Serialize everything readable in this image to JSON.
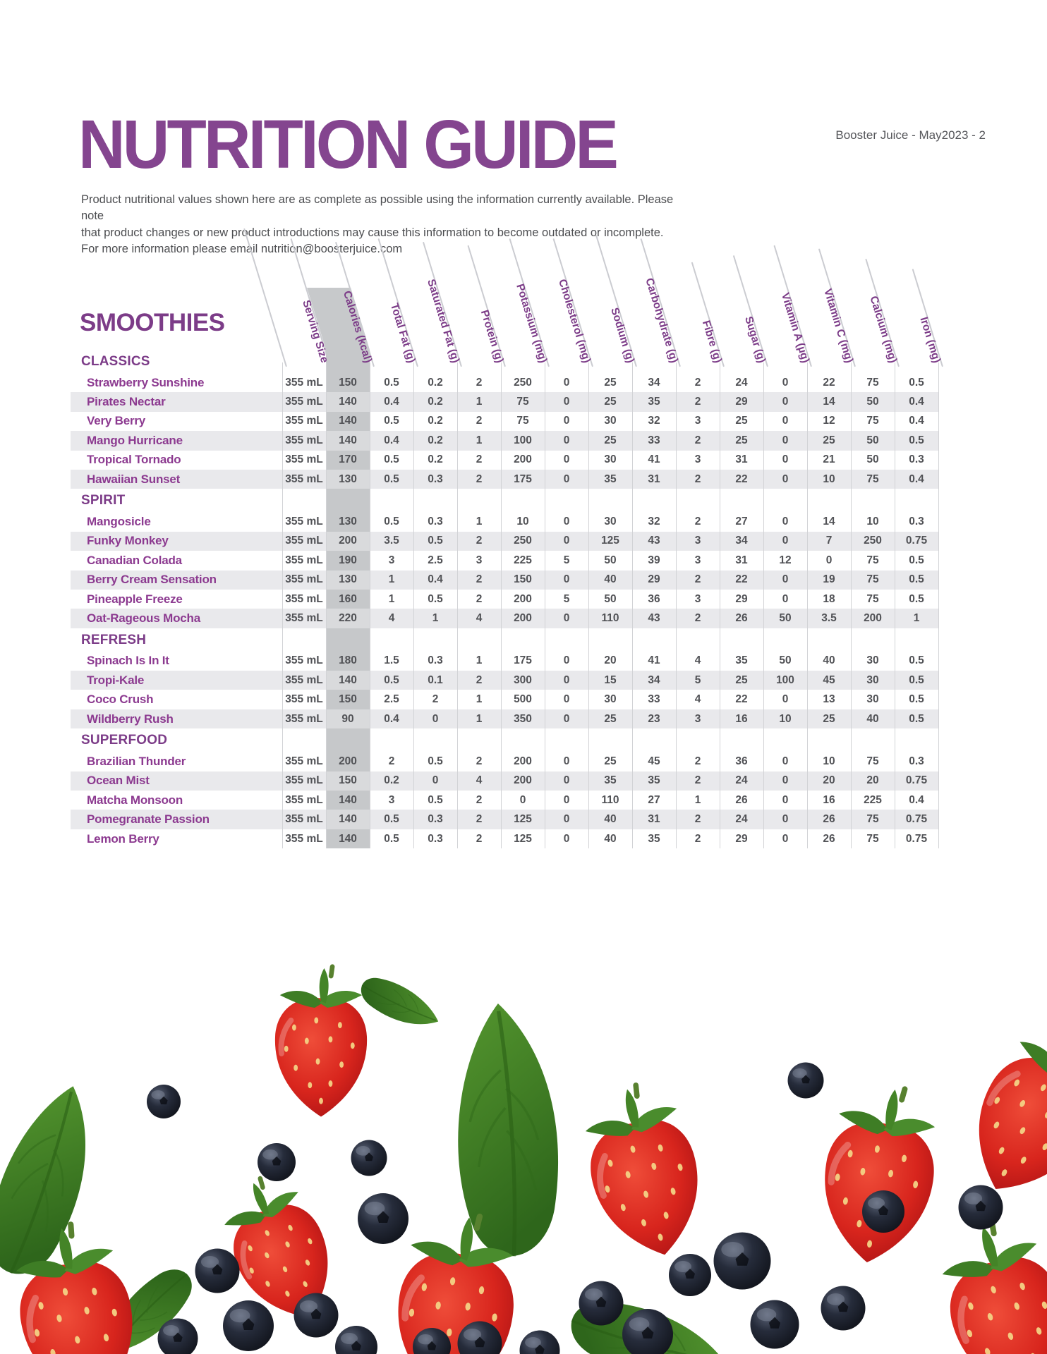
{
  "page": {
    "note": "Booster Juice - May2023 - 2",
    "title": "NUTRITION GUIDE",
    "intro_lines": [
      "Product nutritional values shown here are as complete as possible using the information currently available. Please note",
      "that product changes or new product introductions may cause this information to become outdated or incomplete.",
      "For more information please email  nutrition@boosterjuice.com"
    ],
    "section_title": "SMOOTHIES"
  },
  "table": {
    "columns": [
      "Serving Size",
      "Calories (kcal)",
      "Total Fat (g)",
      "Saturated Fat (g)",
      "Protein (g)",
      "Potassium (mg)",
      "Cholesterol (mg)",
      "Sodium (g)",
      "Carbohydrate (g)",
      "Fibre (g)",
      "Sugar (g)",
      "Vitamin A (µg)",
      "Vitamin C (mg)",
      "Calcium (mg)",
      "Iron (mg)"
    ],
    "groups": [
      {
        "name": "CLASSICS",
        "rows": [
          {
            "name": "Strawberry Sunshine",
            "values": [
              "355 mL",
              "150",
              "0.5",
              "0.2",
              "2",
              "250",
              "0",
              "25",
              "34",
              "2",
              "24",
              "0",
              "22",
              "75",
              "0.5"
            ]
          },
          {
            "name": "Pirates Nectar",
            "values": [
              "355 mL",
              "140",
              "0.4",
              "0.2",
              "1",
              "75",
              "0",
              "25",
              "35",
              "2",
              "29",
              "0",
              "14",
              "50",
              "0.4"
            ]
          },
          {
            "name": "Very Berry",
            "values": [
              "355 mL",
              "140",
              "0.5",
              "0.2",
              "2",
              "75",
              "0",
              "30",
              "32",
              "3",
              "25",
              "0",
              "12",
              "75",
              "0.4"
            ]
          },
          {
            "name": "Mango Hurricane",
            "values": [
              "355 mL",
              "140",
              "0.4",
              "0.2",
              "1",
              "100",
              "0",
              "25",
              "33",
              "2",
              "25",
              "0",
              "25",
              "50",
              "0.5"
            ]
          },
          {
            "name": "Tropical Tornado",
            "values": [
              "355 mL",
              "170",
              "0.5",
              "0.2",
              "2",
              "200",
              "0",
              "30",
              "41",
              "3",
              "31",
              "0",
              "21",
              "50",
              "0.3"
            ]
          },
          {
            "name": "Hawaiian Sunset",
            "values": [
              "355 mL",
              "130",
              "0.5",
              "0.3",
              "2",
              "175",
              "0",
              "35",
              "31",
              "2",
              "22",
              "0",
              "10",
              "75",
              "0.4"
            ]
          }
        ]
      },
      {
        "name": "SPIRIT",
        "rows": [
          {
            "name": "Mangosicle",
            "values": [
              "355 mL",
              "130",
              "0.5",
              "0.3",
              "1",
              "10",
              "0",
              "30",
              "32",
              "2",
              "27",
              "0",
              "14",
              "10",
              "0.3"
            ]
          },
          {
            "name": "Funky Monkey",
            "values": [
              "355 mL",
              "200",
              "3.5",
              "0.5",
              "2",
              "250",
              "0",
              "125",
              "43",
              "3",
              "34",
              "0",
              "7",
              "250",
              "0.75"
            ]
          },
          {
            "name": "Canadian Colada",
            "values": [
              "355 mL",
              "190",
              "3",
              "2.5",
              "3",
              "225",
              "5",
              "50",
              "39",
              "3",
              "31",
              "12",
              "0",
              "75",
              "0.5"
            ]
          },
          {
            "name": "Berry Cream Sensation",
            "values": [
              "355 mL",
              "130",
              "1",
              "0.4",
              "2",
              "150",
              "0",
              "40",
              "29",
              "2",
              "22",
              "0",
              "19",
              "75",
              "0.5"
            ]
          },
          {
            "name": "Pineapple Freeze",
            "values": [
              "355 mL",
              "160",
              "1",
              "0.5",
              "2",
              "200",
              "5",
              "50",
              "36",
              "3",
              "29",
              "0",
              "18",
              "75",
              "0.5"
            ]
          },
          {
            "name": "Oat-Rageous Mocha",
            "values": [
              "355 mL",
              "220",
              "4",
              "1",
              "4",
              "200",
              "0",
              "110",
              "43",
              "2",
              "26",
              "50",
              "3.5",
              "200",
              "1"
            ]
          }
        ]
      },
      {
        "name": "REFRESH",
        "rows": [
          {
            "name": "Spinach Is In It",
            "values": [
              "355 mL",
              "180",
              "1.5",
              "0.3",
              "1",
              "175",
              "0",
              "20",
              "41",
              "4",
              "35",
              "50",
              "40",
              "30",
              "0.5"
            ]
          },
          {
            "name": "Tropi-Kale",
            "values": [
              "355 mL",
              "140",
              "0.5",
              "0.1",
              "2",
              "300",
              "0",
              "15",
              "34",
              "5",
              "25",
              "100",
              "45",
              "30",
              "0.5"
            ]
          },
          {
            "name": "Coco Crush",
            "values": [
              "355 mL",
              "150",
              "2.5",
              "2",
              "1",
              "500",
              "0",
              "30",
              "33",
              "4",
              "22",
              "0",
              "13",
              "30",
              "0.5"
            ]
          },
          {
            "name": "Wildberry Rush",
            "values": [
              "355 mL",
              "90",
              "0.4",
              "0",
              "1",
              "350",
              "0",
              "25",
              "23",
              "3",
              "16",
              "10",
              "25",
              "40",
              "0.5"
            ]
          }
        ]
      },
      {
        "name": "SUPERFOOD",
        "rows": [
          {
            "name": "Brazilian Thunder",
            "values": [
              "355 mL",
              "200",
              "2",
              "0.5",
              "2",
              "200",
              "0",
              "25",
              "45",
              "2",
              "36",
              "0",
              "10",
              "75",
              "0.3"
            ]
          },
          {
            "name": "Ocean Mist",
            "values": [
              "355 mL",
              "150",
              "0.2",
              "0",
              "4",
              "200",
              "0",
              "35",
              "35",
              "2",
              "24",
              "0",
              "20",
              "20",
              "0.75"
            ]
          },
          {
            "name": "Matcha Monsoon",
            "values": [
              "355 mL",
              "140",
              "3",
              "0.5",
              "2",
              "0",
              "0",
              "110",
              "27",
              "1",
              "26",
              "0",
              "16",
              "225",
              "0.4"
            ]
          },
          {
            "name": "Pomegranate Passion",
            "values": [
              "355 mL",
              "140",
              "0.5",
              "0.3",
              "2",
              "125",
              "0",
              "40",
              "31",
              "2",
              "24",
              "0",
              "26",
              "75",
              "0.75"
            ]
          },
          {
            "name": "Lemon Berry",
            "values": [
              "355 mL",
              "140",
              "0.5",
              "0.3",
              "2",
              "125",
              "0",
              "40",
              "35",
              "2",
              "29",
              "0",
              "26",
              "75",
              "0.75"
            ]
          }
        ]
      }
    ]
  },
  "decorations": [
    "strawberry",
    "blueberry",
    "basil-leaf"
  ],
  "colors": {
    "accent_purple": "#84458f",
    "header_purple": "#7c3c88",
    "product_purple": "#8c3a90",
    "value_text": "#515256",
    "row_band": "#e9e9ec",
    "calories_shade": "#c6c8ca",
    "strawberry_red": "#d8251d",
    "blueberry_dark": "#1a1d26",
    "basil_green": "#3f7d26"
  }
}
